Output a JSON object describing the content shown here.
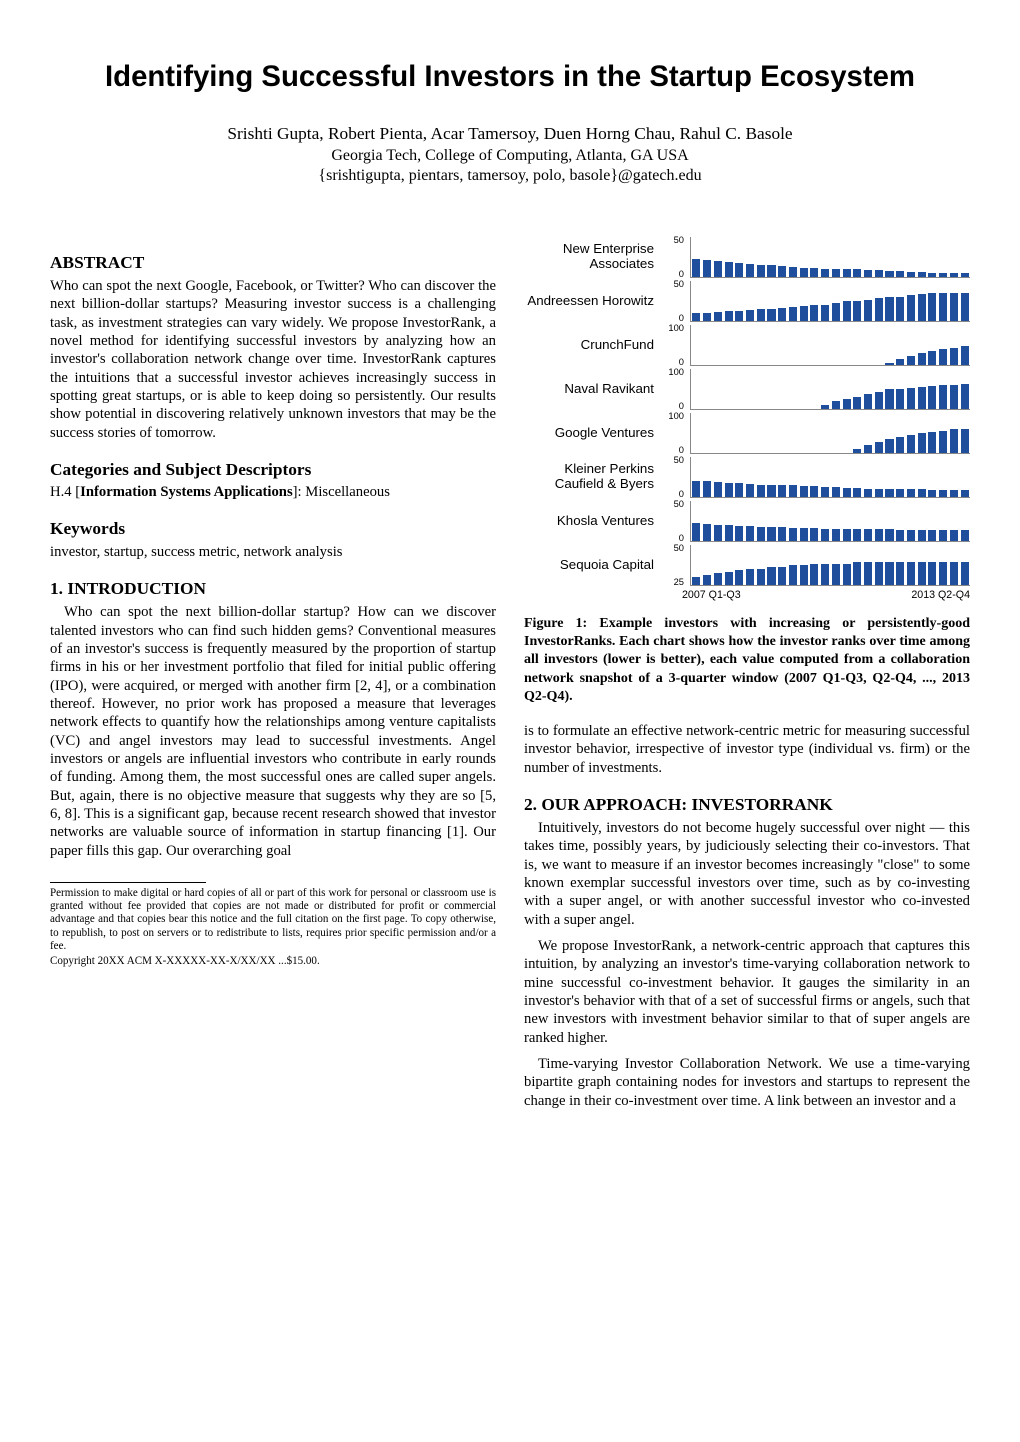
{
  "title": "Identifying Successful Investors in the Startup Ecosystem",
  "authors": "Srishti Gupta, Robert Pienta, Acar Tamersoy, Duen Horng Chau, Rahul C. Basole",
  "affiliation": "Georgia Tech, College of Computing, Atlanta, GA USA",
  "emails": "{srishtigupta, pientars, tamersoy, polo, basole}@gatech.edu",
  "abstract_head": "ABSTRACT",
  "abstract_body": "Who can spot the next Google, Facebook, or Twitter? Who can discover the next billion-dollar startups? Measuring investor success is a challenging task, as investment strategies can vary widely. We propose InvestorRank, a novel method for identifying successful investors by analyzing how an investor's collaboration network change over time. InvestorRank captures the intuitions that a successful investor achieves increasingly success in spotting great startups, or is able to keep doing so persistently. Our results show potential in discovering relatively unknown investors that may be the success stories of tomorrow.",
  "categories_head": "Categories and Subject Descriptors",
  "categories_body_a": "H.4 [",
  "categories_body_b": "Information Systems Applications",
  "categories_body_c": "]: Miscellaneous",
  "keywords_head": "Keywords",
  "keywords_body": "investor, startup, success metric, network analysis",
  "sec1_head": "1.   INTRODUCTION",
  "sec1_p1": "Who can spot the next billion-dollar startup? How can we discover talented investors who can find such hidden gems? Conventional measures of an investor's success is frequently measured by the proportion of startup firms in his or her investment portfolio that filed for initial public offering (IPO), were acquired, or merged with another firm [2, 4], or a combination thereof. However, no prior work has proposed a measure that leverages network effects to quantify how the relationships among venture capitalists (VC) and angel investors may lead to successful investments. Angel investors or angels are influential investors who contribute in early rounds of funding. Among them, the most successful ones are called super angels. But, again, there is no objective measure that suggests why they are so [5, 6, 8]. This is a significant gap, because recent research showed that investor networks are valuable source of information in startup financing [1]. Our paper fills this gap. Our overarching goal",
  "permission": "Permission to make digital or hard copies of all or part of this work for personal or classroom use is granted without fee provided that copies are not made or distributed for profit or commercial advantage and that copies bear this notice and the full citation on the first page. To copy otherwise, to republish, to post on servers or to redistribute to lists, requires prior specific permission and/or a fee.",
  "copyright": "Copyright 20XX ACM X-XXXXX-XX-X/XX/XX ...$15.00.",
  "fig1_caption": "Figure 1: Example investors with increasing or persistently-good InvestorRanks. Each chart shows how the investor ranks over time among all investors (lower is better), each value computed from a collaboration network snapshot of a 3-quarter window (2007 Q1-Q3, Q2-Q4, ..., 2013 Q2-Q4).",
  "col2_p1": "is to formulate an effective network-centric metric for measuring successful investor behavior, irrespective of investor type (individual vs. firm) or the number of investments.",
  "sec2_head": "2.  OUR APPROACH: INVESTORRANK",
  "sec2_p1": "Intuitively, investors do not become hugely successful over night — this takes time, possibly years, by judiciously selecting their co-investors. That is, we want to measure if an investor becomes increasingly \"close\" to some known exemplar successful investors over time, such as by co-investing with a super angel, or with another successful investor who co-invested with a super angel.",
  "sec2_p2": "We propose InvestorRank, a network-centric approach that captures this intuition, by analyzing an investor's time-varying collaboration network to mine successful co-investment behavior. It gauges the similarity in an investor's behavior with that of a set of successful firms or angels, such that new investors with investment behavior similar to that of super angels are ranked higher.",
  "sec2_p3": "Time-varying Investor Collaboration Network. We use a time-varying bipartite graph containing nodes for investors and startups to represent the change in their co-investment over time. A link between an investor and a",
  "figure1": {
    "type": "bar",
    "bar_color": "#1f4e9c",
    "plot_bg": "#ffffff",
    "axis_color": "#888888",
    "label_fontsize": 10,
    "tick_fontsize": 7,
    "x_start_label": "2007 Q1-Q3",
    "x_end_label": "2013 Q2-Q4",
    "n_bars": 26,
    "panels": [
      {
        "label": "New Enterprise Associates",
        "ymin": 0,
        "ymax": 50,
        "values": [
          22,
          21,
          19,
          18,
          17,
          16,
          15,
          14,
          13,
          12,
          11,
          11,
          10,
          10,
          9,
          9,
          8,
          8,
          7,
          7,
          6,
          6,
          5,
          5,
          4,
          4
        ]
      },
      {
        "label": "Andreessen Horowitz",
        "ymin": 0,
        "ymax": 50,
        "values": [
          9,
          10,
          11,
          12,
          12,
          13,
          14,
          15,
          16,
          17,
          18,
          19,
          20,
          22,
          24,
          25,
          26,
          28,
          29,
          30,
          32,
          33,
          34,
          34,
          34,
          34
        ]
      },
      {
        "label": "CrunchFund",
        "ymin": 0,
        "ymax": 100,
        "values": [
          0,
          0,
          0,
          0,
          0,
          0,
          0,
          0,
          0,
          0,
          0,
          0,
          0,
          0,
          0,
          0,
          0,
          0,
          5,
          15,
          22,
          28,
          34,
          38,
          42,
          46
        ]
      },
      {
        "label": "Naval Ravikant",
        "ymin": 0,
        "ymax": 100,
        "values": [
          0,
          0,
          0,
          0,
          0,
          0,
          0,
          0,
          0,
          0,
          0,
          0,
          10,
          18,
          24,
          30,
          36,
          42,
          48,
          50,
          52,
          54,
          56,
          58,
          60,
          62
        ]
      },
      {
        "label": "Google Ventures",
        "ymin": 0,
        "ymax": 100,
        "values": [
          0,
          0,
          0,
          0,
          0,
          0,
          0,
          0,
          0,
          0,
          0,
          0,
          0,
          0,
          0,
          10,
          18,
          26,
          34,
          40,
          45,
          49,
          52,
          55,
          58,
          60
        ]
      },
      {
        "label": "Kleiner Perkins Caufield & Byers",
        "ymin": 0,
        "ymax": 50,
        "values": [
          20,
          19,
          18,
          17,
          17,
          16,
          15,
          15,
          14,
          14,
          13,
          13,
          12,
          12,
          11,
          11,
          10,
          10,
          10,
          9,
          9,
          9,
          8,
          8,
          8,
          8
        ]
      },
      {
        "label": "Khosla Ventures",
        "ymin": 0,
        "ymax": 50,
        "values": [
          22,
          21,
          20,
          19,
          18,
          18,
          17,
          17,
          17,
          16,
          16,
          16,
          15,
          15,
          15,
          14,
          14,
          14,
          14,
          13,
          13,
          13,
          13,
          13,
          13,
          13
        ]
      },
      {
        "label": "Sequoia Capital",
        "ymin": 25,
        "ymax": 50,
        "values": [
          30,
          31,
          32,
          33,
          34,
          35,
          35,
          36,
          36,
          37,
          37,
          38,
          38,
          38,
          38,
          39,
          39,
          39,
          39,
          39,
          39,
          39,
          39,
          39,
          39,
          39
        ]
      }
    ]
  }
}
